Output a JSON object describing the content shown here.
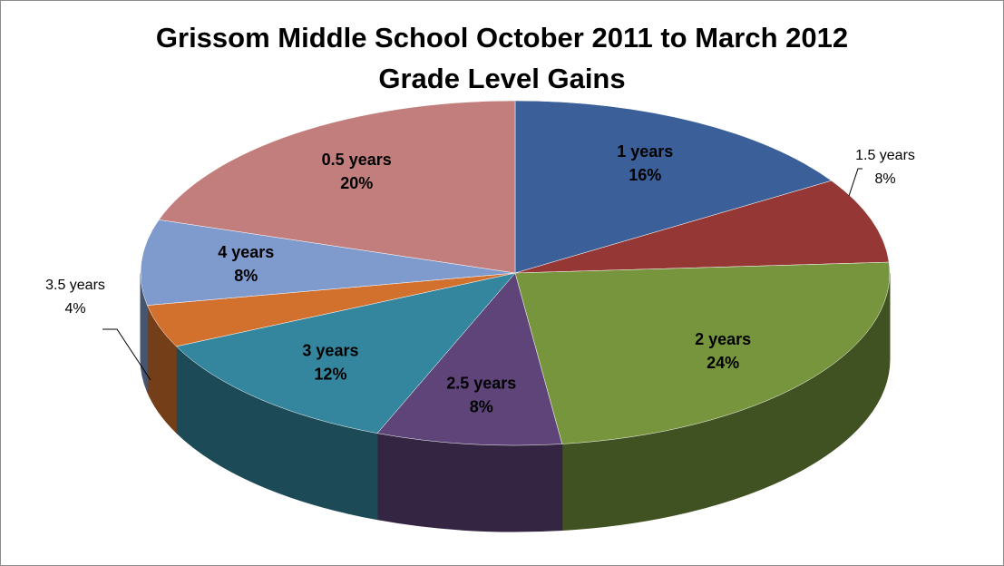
{
  "chart_data": {
    "type": "pie3d",
    "title": "Grissom Middle School October 2011 to March 2012\nGrade Level Gains",
    "categories": [
      "1 years",
      "1.5 years",
      "2 years",
      "2.5 years",
      "3 years",
      "3.5 years",
      "4 years",
      "0.5 years"
    ],
    "values": [
      16,
      8,
      24,
      8,
      12,
      4,
      8,
      20
    ],
    "value_labels": [
      "16%",
      "8%",
      "24%",
      "8%",
      "12%",
      "4%",
      "8%",
      "20%"
    ],
    "colors": [
      "#3b5f99",
      "#953735",
      "#76953d",
      "#5e4479",
      "#33869e",
      "#d2702e",
      "#7f9acc",
      "#c17e7c"
    ]
  }
}
